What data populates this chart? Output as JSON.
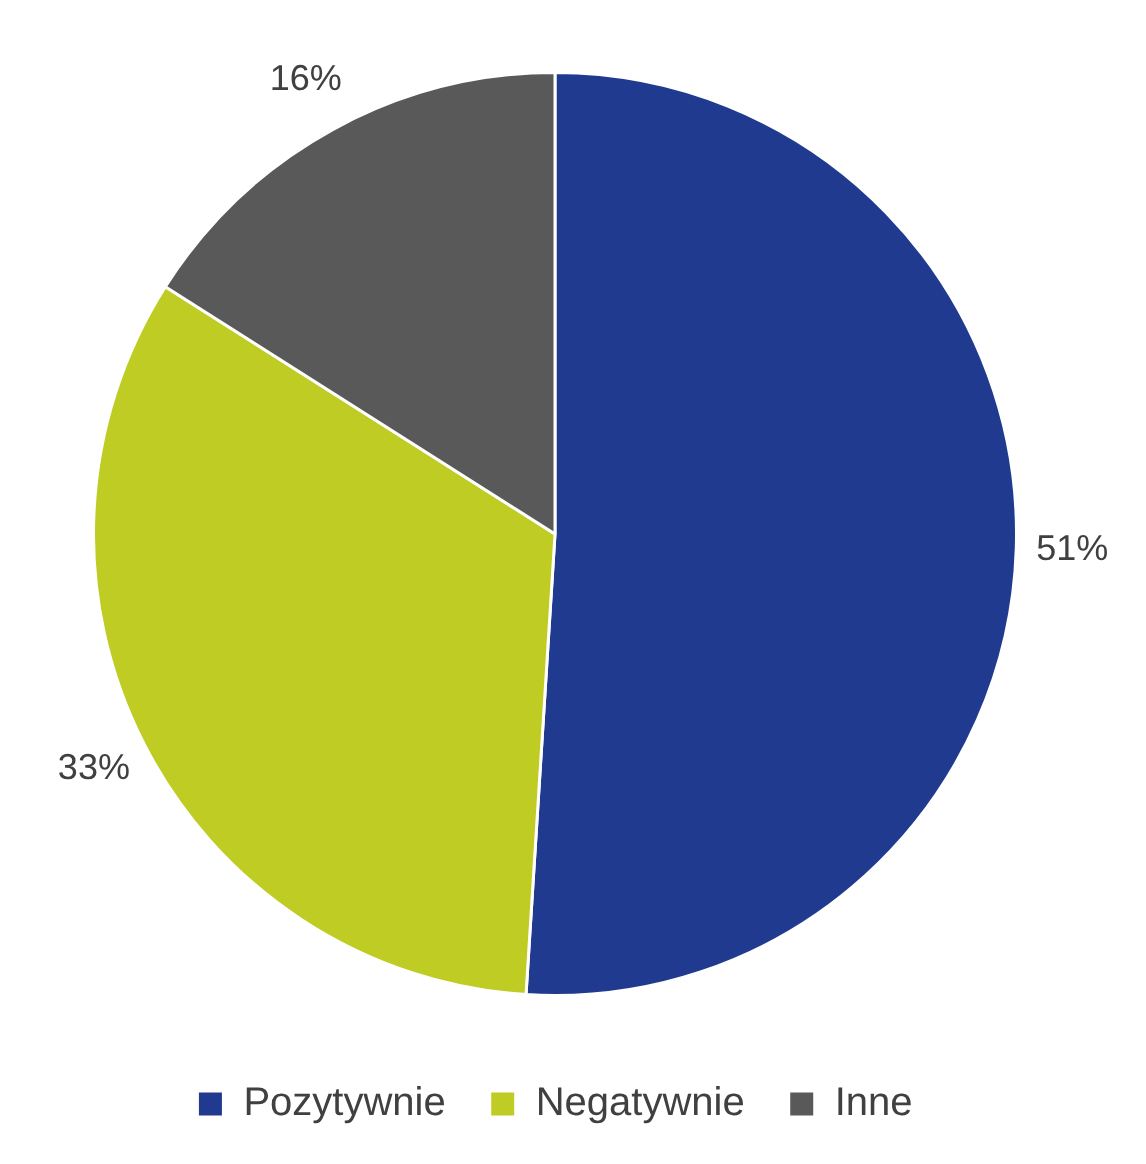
{
  "chart_data": {
    "type": "pie",
    "categories": [
      "Pozytywnie",
      "Negatywnie",
      "Inne"
    ],
    "values": [
      51,
      33,
      16
    ],
    "value_labels": [
      "51%",
      "33%",
      "16%"
    ],
    "colors": [
      "#1f3a8f",
      "#bfcc24",
      "#595959"
    ],
    "legend": "bottom"
  }
}
